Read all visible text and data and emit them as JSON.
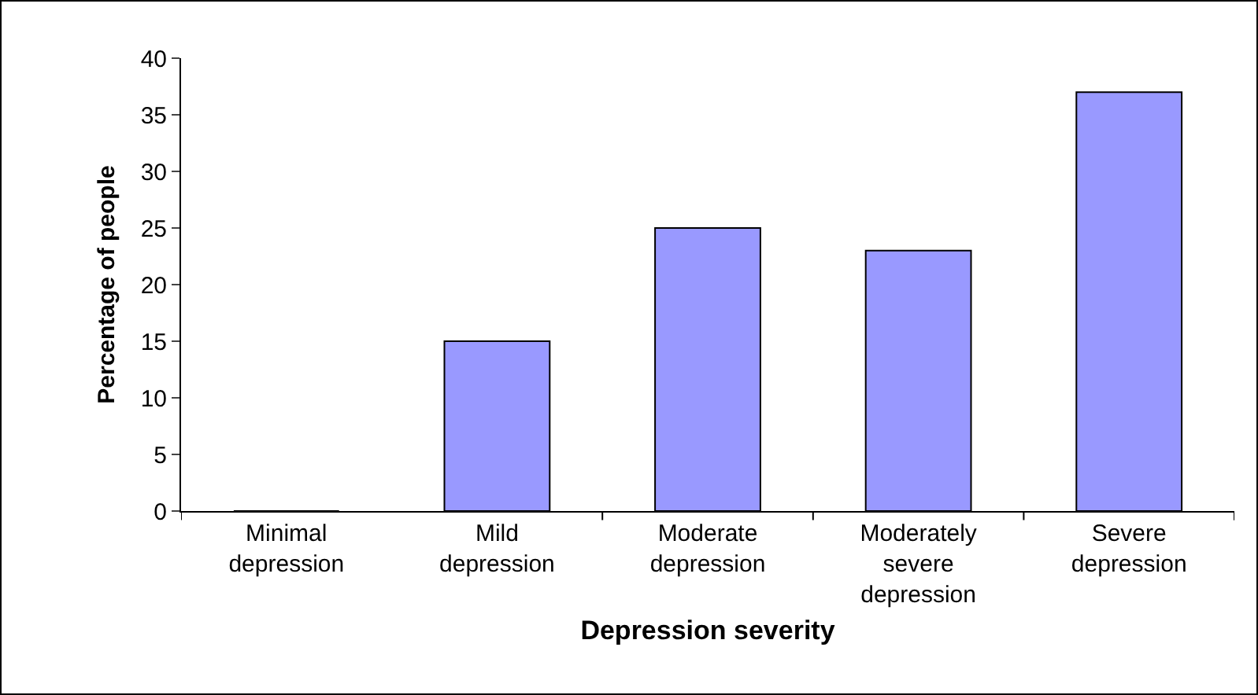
{
  "chart_data": {
    "type": "bar",
    "xlabel": "Depression severity",
    "ylabel": "Percentage of people",
    "categories": [
      "Minimal depression",
      "Mild depression",
      "Moderate depression",
      "Moderately severe depression",
      "Severe depression"
    ],
    "values": [
      0,
      15,
      25,
      23,
      37
    ],
    "color": "#9999ff",
    "ylim": [
      0,
      40
    ],
    "yticks": [
      0,
      5,
      10,
      15,
      20,
      25,
      30,
      35,
      40
    ],
    "grid": false
  }
}
